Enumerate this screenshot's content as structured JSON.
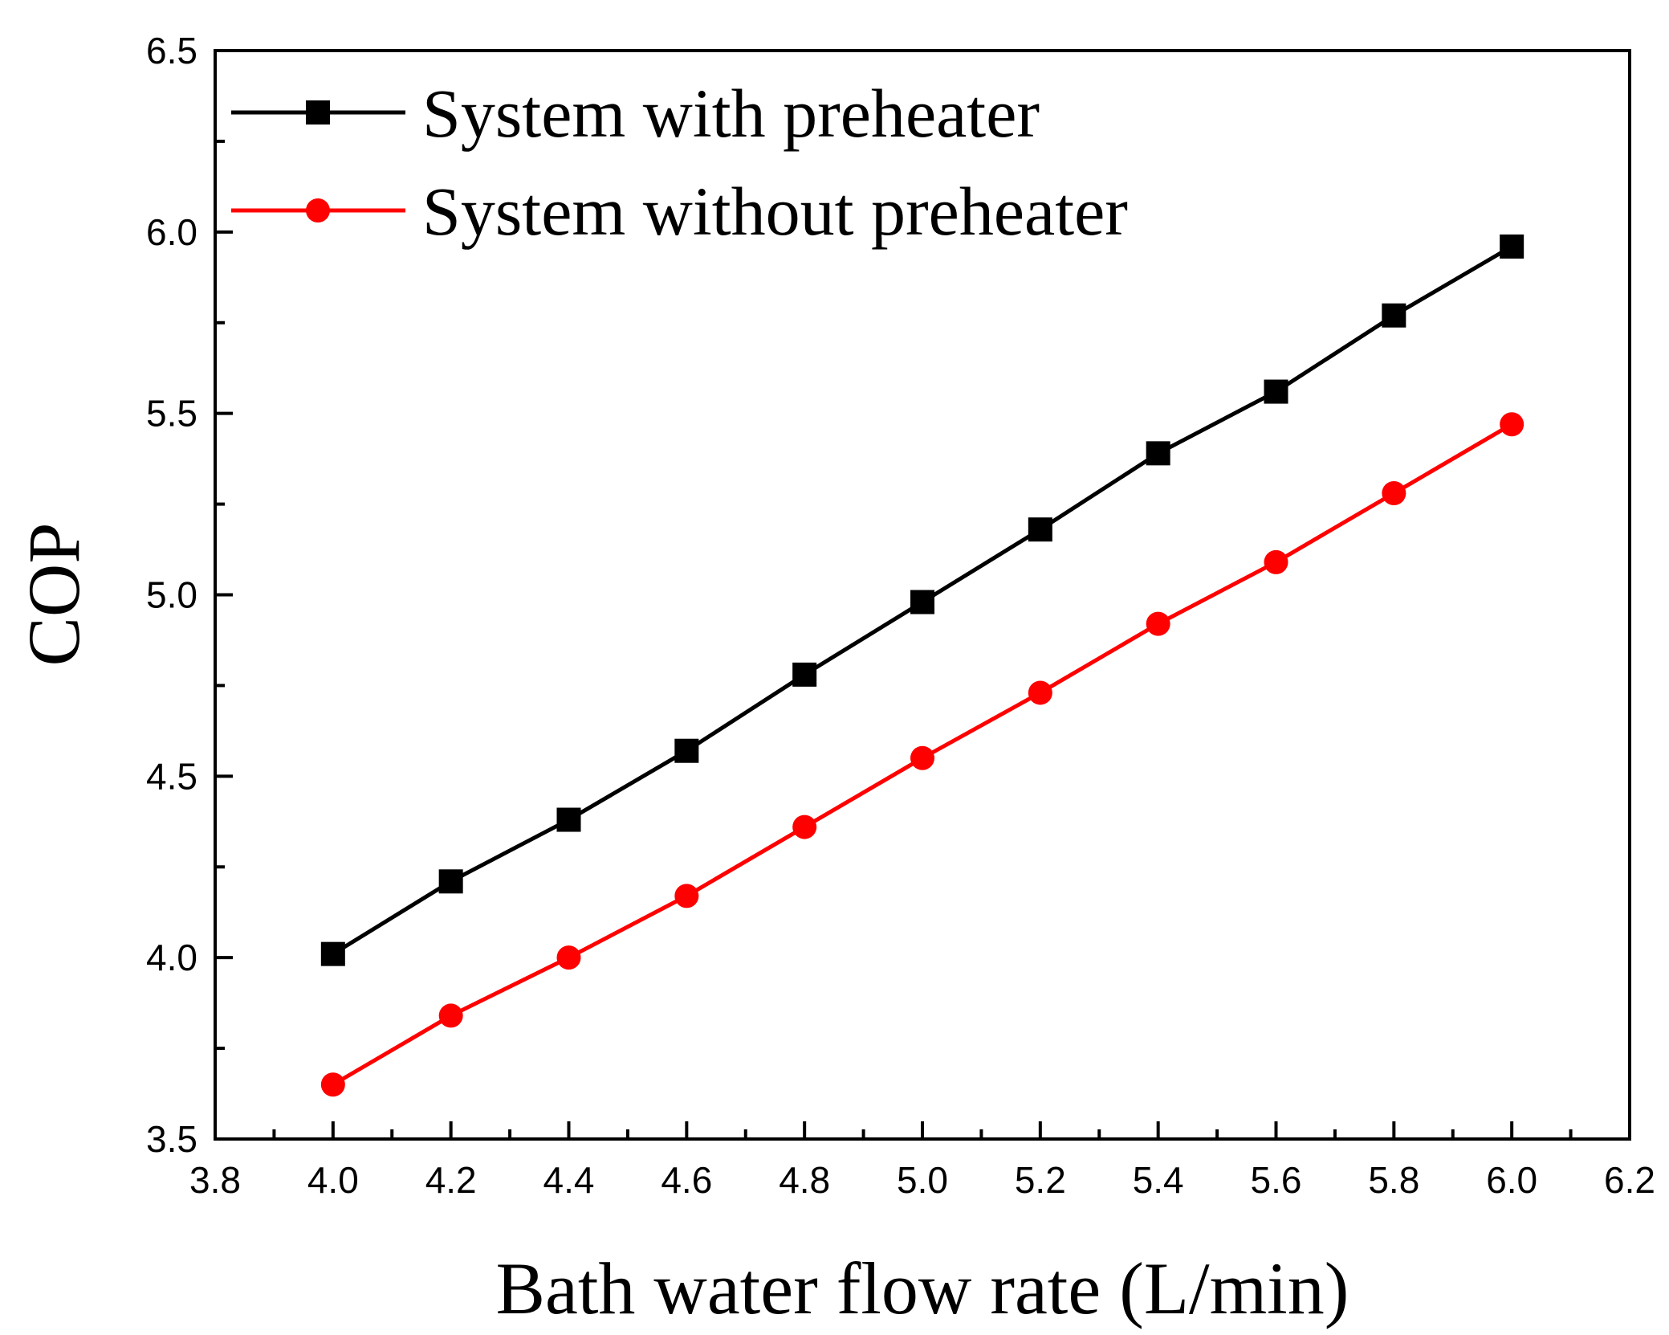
{
  "chart_data": {
    "type": "line",
    "title": "",
    "xlabel": "Bath water flow rate (L/min)",
    "ylabel": "COP",
    "xlim": [
      3.8,
      6.2
    ],
    "ylim": [
      3.5,
      6.5
    ],
    "x_ticks": [
      "3.8",
      "4.0",
      "4.2",
      "4.4",
      "4.6",
      "4.8",
      "5.0",
      "5.2",
      "5.4",
      "5.6",
      "5.8",
      "6.0",
      "6.2"
    ],
    "y_ticks": [
      "3.5",
      "4.0",
      "4.5",
      "5.0",
      "5.5",
      "6.0",
      "6.5"
    ],
    "grid": false,
    "legend_position": "top-left",
    "x": [
      4.0,
      4.2,
      4.4,
      4.6,
      4.8,
      5.0,
      5.2,
      5.4,
      5.6,
      5.8,
      6.0
    ],
    "series": [
      {
        "name": "System with preheater",
        "marker": "square",
        "color": "#000000",
        "values": [
          4.01,
          4.21,
          4.38,
          4.57,
          4.78,
          4.98,
          5.18,
          5.39,
          5.56,
          5.77,
          5.96
        ]
      },
      {
        "name": "System without preheater",
        "marker": "circle",
        "color": "#ff0000",
        "values": [
          3.65,
          3.84,
          4.0,
          4.17,
          4.36,
          4.55,
          4.73,
          4.92,
          5.09,
          5.28,
          5.47
        ]
      }
    ]
  }
}
